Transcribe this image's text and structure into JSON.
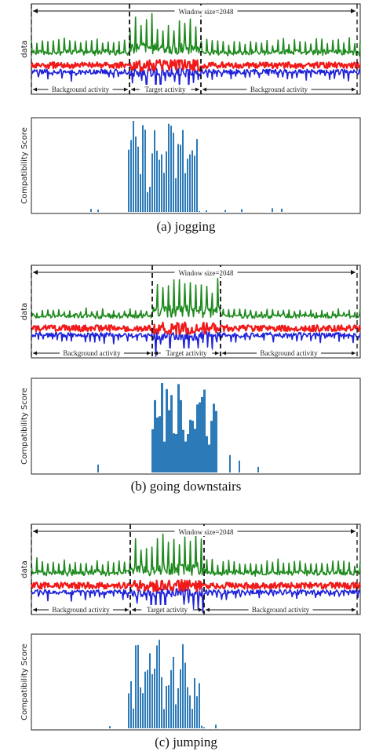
{
  "colors": {
    "green": "#1e8a1e",
    "red": "#f01a1a",
    "blue": "#1f22d8",
    "score": "#2d7ab8"
  },
  "labels": {
    "window": "Window size=2048",
    "background": "Background activity",
    "target": "Target activity",
    "data_ylabel": "data",
    "score_ylabel": "Compatibility Score"
  },
  "chart_data": [
    {
      "type": "line",
      "caption": "(a)  jogging",
      "ylabel": "data",
      "series": [
        {
          "color": "green"
        },
        {
          "color": "red"
        },
        {
          "color": "blue"
        }
      ],
      "x_range": [
        0,
        1
      ],
      "target_window": [
        0.3,
        0.52
      ],
      "window_bounds": [
        0.0,
        1.0
      ],
      "ticks": false
    },
    {
      "type": "bar",
      "ylabel": "Compatibility Score",
      "x_range": [
        0,
        1
      ],
      "y_range": [
        0,
        1
      ],
      "values_shape": "scores concentrated over target activity window",
      "peak_range": [
        0.3,
        0.52
      ],
      "ticks": false
    },
    {
      "type": "line",
      "caption": "(b)  going downstairs",
      "ylabel": "data",
      "series": [
        {
          "color": "green"
        },
        {
          "color": "red"
        },
        {
          "color": "blue"
        }
      ],
      "x_range": [
        0,
        1
      ],
      "target_window": [
        0.37,
        0.58
      ],
      "window_bounds": [
        0.0,
        1.0
      ],
      "ticks": false
    },
    {
      "type": "bar",
      "ylabel": "Compatibility Score",
      "x_range": [
        0,
        1
      ],
      "y_range": [
        0,
        1
      ],
      "peak_range": [
        0.37,
        0.58
      ],
      "ticks": false
    },
    {
      "type": "line",
      "caption": "(c)  jumping",
      "ylabel": "data",
      "series": [
        {
          "color": "green"
        },
        {
          "color": "red"
        },
        {
          "color": "blue"
        }
      ],
      "x_range": [
        0,
        1
      ],
      "target_window": [
        0.3,
        0.52
      ],
      "window_bounds": [
        0.0,
        1.0
      ],
      "ticks": false
    },
    {
      "type": "bar",
      "ylabel": "Compatibility Score",
      "x_range": [
        0,
        1
      ],
      "y_range": [
        0,
        1
      ],
      "peak_range": [
        0.3,
        0.52
      ],
      "ticks": false
    }
  ]
}
